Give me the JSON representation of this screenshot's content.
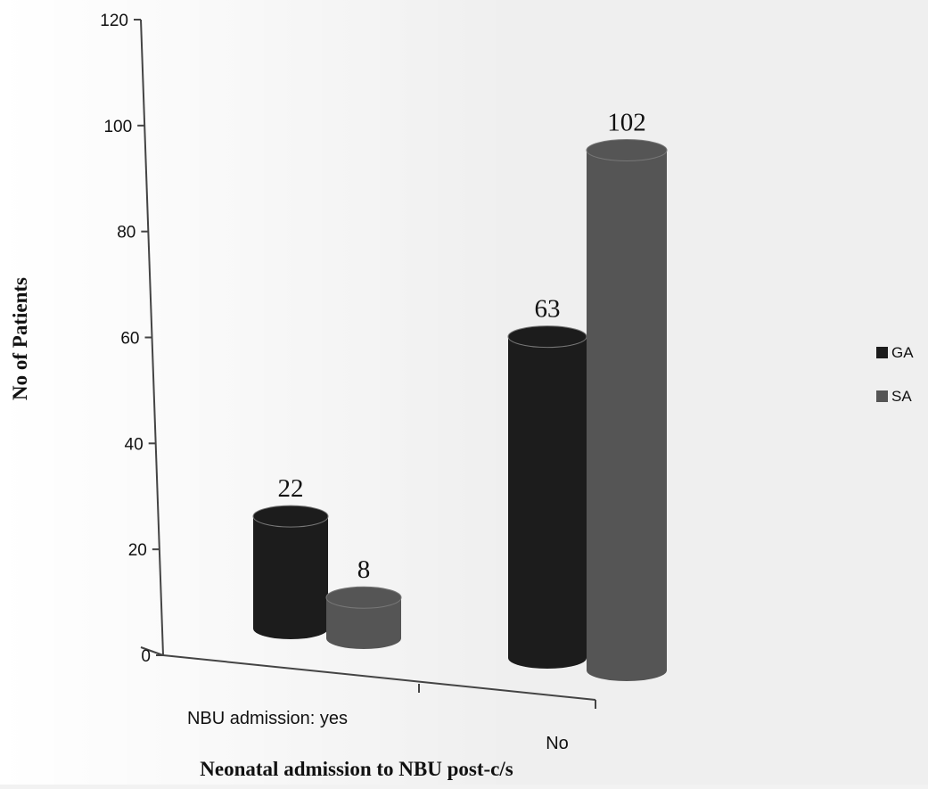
{
  "chart_data": {
    "type": "bar",
    "subtype": "3d-cylinder",
    "categories": [
      "NBU admission: yes",
      "No"
    ],
    "series": [
      {
        "name": "GA",
        "values": [
          22,
          63
        ],
        "color": "#1c1c1c"
      },
      {
        "name": "SA",
        "values": [
          8,
          102
        ],
        "color": "#555555"
      }
    ],
    "data_labels": [
      "22",
      "8",
      "63",
      "102"
    ],
    "xlabel": "Neonatal admission to NBU post-c/s",
    "ylabel": "No of Patients",
    "ylim": [
      0,
      120
    ],
    "yticks": [
      "0",
      "20",
      "40",
      "60",
      "80",
      "100",
      "120"
    ],
    "legend_position": "right",
    "grid": false
  }
}
